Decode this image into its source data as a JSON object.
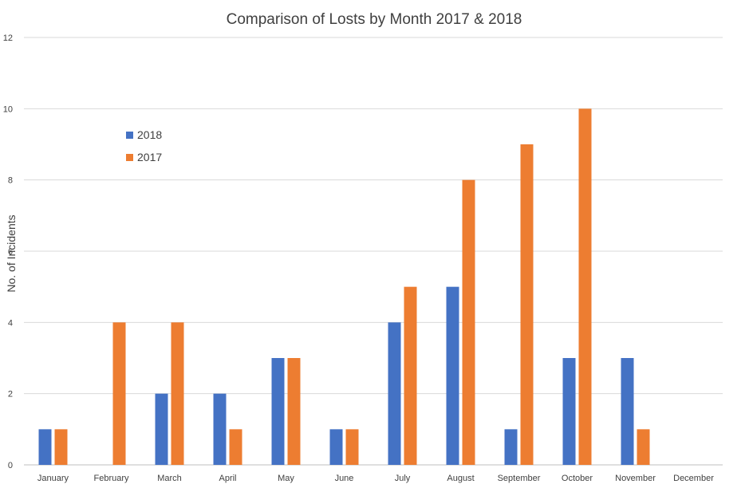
{
  "chart_data": {
    "type": "bar",
    "title": "Comparison of Losts by Month 2017 & 2018",
    "xlabel": "",
    "ylabel": "No. of Incidents",
    "ylim": [
      0,
      12
    ],
    "yticks": [
      0,
      2,
      4,
      6,
      8,
      10,
      12
    ],
    "grid": true,
    "legend_position": "upper-left",
    "categories": [
      "January",
      "February",
      "March",
      "April",
      "May",
      "June",
      "July",
      "August",
      "September",
      "October",
      "November",
      "December"
    ],
    "series": [
      {
        "name": "2018",
        "color": "#4472c4",
        "values": [
          1,
          0,
          2,
          2,
          3,
          1,
          4,
          5,
          1,
          3,
          3,
          0
        ]
      },
      {
        "name": "2017",
        "color": "#ed7d31",
        "values": [
          1,
          4,
          4,
          1,
          3,
          1,
          5,
          8,
          9,
          10,
          1,
          0
        ]
      }
    ]
  }
}
